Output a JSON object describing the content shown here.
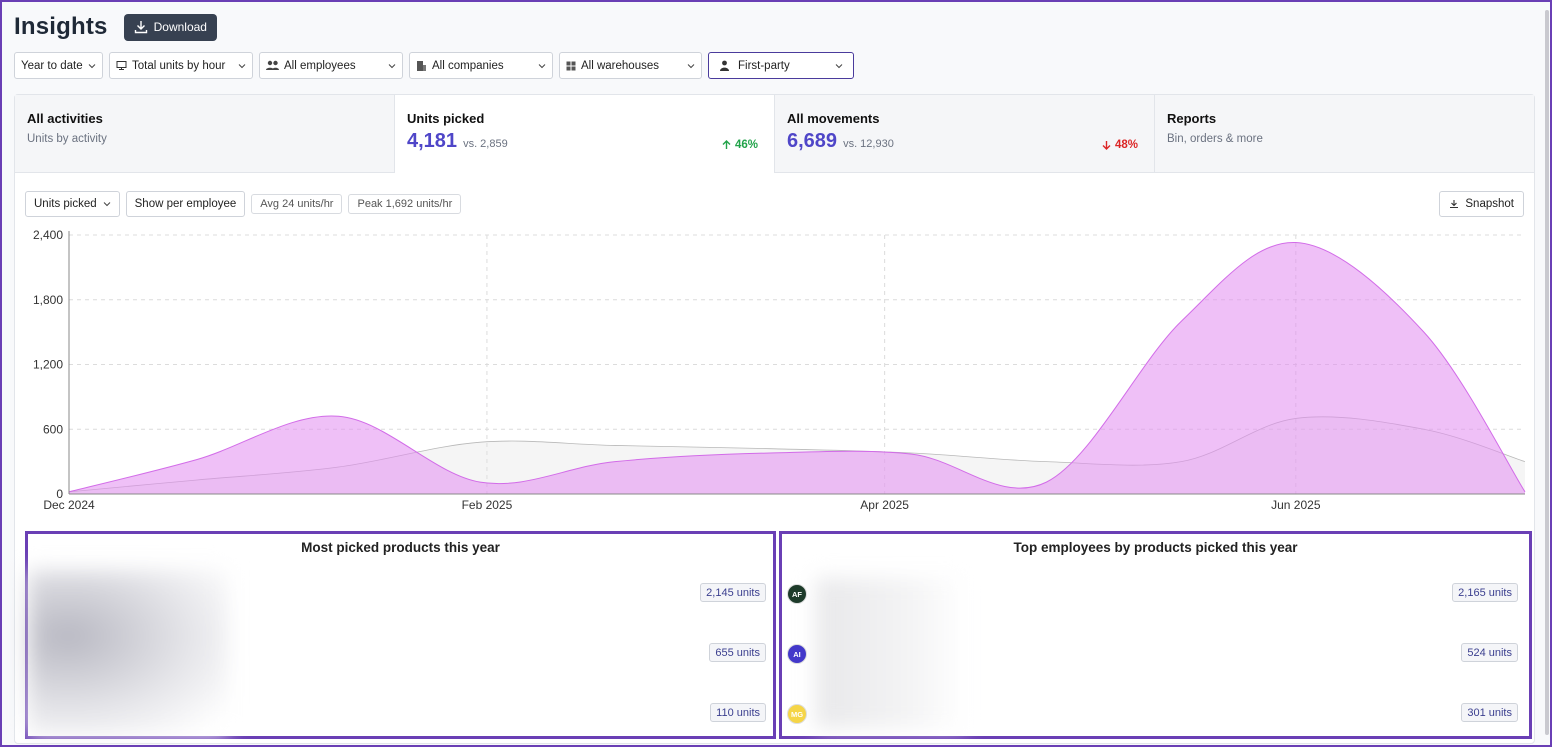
{
  "header": {
    "title": "Insights",
    "download_label": "Download"
  },
  "filters": [
    {
      "label": "Year to date",
      "icon": ""
    },
    {
      "label": "Total units by hour",
      "icon": "tray-icon"
    },
    {
      "label": "All employees",
      "icon": "users-icon"
    },
    {
      "label": "All companies",
      "icon": "building-icon"
    },
    {
      "label": "All warehouses",
      "icon": "grid-icon"
    },
    {
      "label": "First-party",
      "icon": "person-icon"
    }
  ],
  "tabs": [
    {
      "title": "All activities",
      "subtitle": "Units by activity"
    },
    {
      "title": "Units picked",
      "value": "4,181",
      "vs": "vs. 2,859",
      "change": "46%",
      "direction": "up"
    },
    {
      "title": "All movements",
      "value": "6,689",
      "vs": "vs. 12,930",
      "change": "48%",
      "direction": "down"
    },
    {
      "title": "Reports",
      "subtitle": "Bin, orders & more"
    }
  ],
  "toolbar": {
    "metric_select": "Units picked",
    "per_employee": "Show per employee",
    "avg_chip": "Avg 24 units/hr",
    "peak_chip": "Peak 1,692 units/hr",
    "snapshot_label": "Snapshot"
  },
  "chart_data": {
    "type": "area",
    "x": [
      "2024-12-01",
      "2024-12-20",
      "2025-01-10",
      "2025-01-31",
      "2025-02-20",
      "2025-03-15",
      "2025-04-05",
      "2025-04-25",
      "2025-05-15",
      "2025-06-01",
      "2025-06-20",
      "2025-07-05"
    ],
    "xtick_labels": [
      "Dec 2024",
      "Feb 2025",
      "Apr 2025",
      "Jun 2025"
    ],
    "xtick_dates": [
      "2024-12-01",
      "2025-02-01",
      "2025-04-01",
      "2025-06-01"
    ],
    "ylim": [
      0,
      2400
    ],
    "yticks": [
      0,
      600,
      1200,
      1800,
      2400
    ],
    "ytick_labels": [
      "0",
      "600",
      "1,200",
      "1,800",
      "2,400"
    ],
    "grid": true,
    "series": [
      {
        "values": [
          20,
          320,
          720,
          110,
          300,
          380,
          370,
          110,
          1600,
          2330,
          1500,
          20
        ],
        "color": "#d26ce8"
      },
      {
        "values": [
          20,
          130,
          250,
          480,
          450,
          420,
          380,
          300,
          300,
          700,
          600,
          300
        ],
        "color": "#b8b8b8"
      }
    ]
  },
  "products_panel": {
    "title": "Most picked products this year",
    "items": [
      {
        "units": "2,145 units"
      },
      {
        "units": "655 units"
      },
      {
        "units": "110 units"
      }
    ]
  },
  "employees_panel": {
    "title": "Top employees by products picked this year",
    "items": [
      {
        "initials": "AF",
        "color": "#1d3b2a",
        "units": "2,165 units"
      },
      {
        "initials": "AI",
        "color": "#4338ca",
        "units": "524 units"
      },
      {
        "initials": "MG",
        "color": "#f5d547",
        "units": "301 units"
      }
    ]
  }
}
